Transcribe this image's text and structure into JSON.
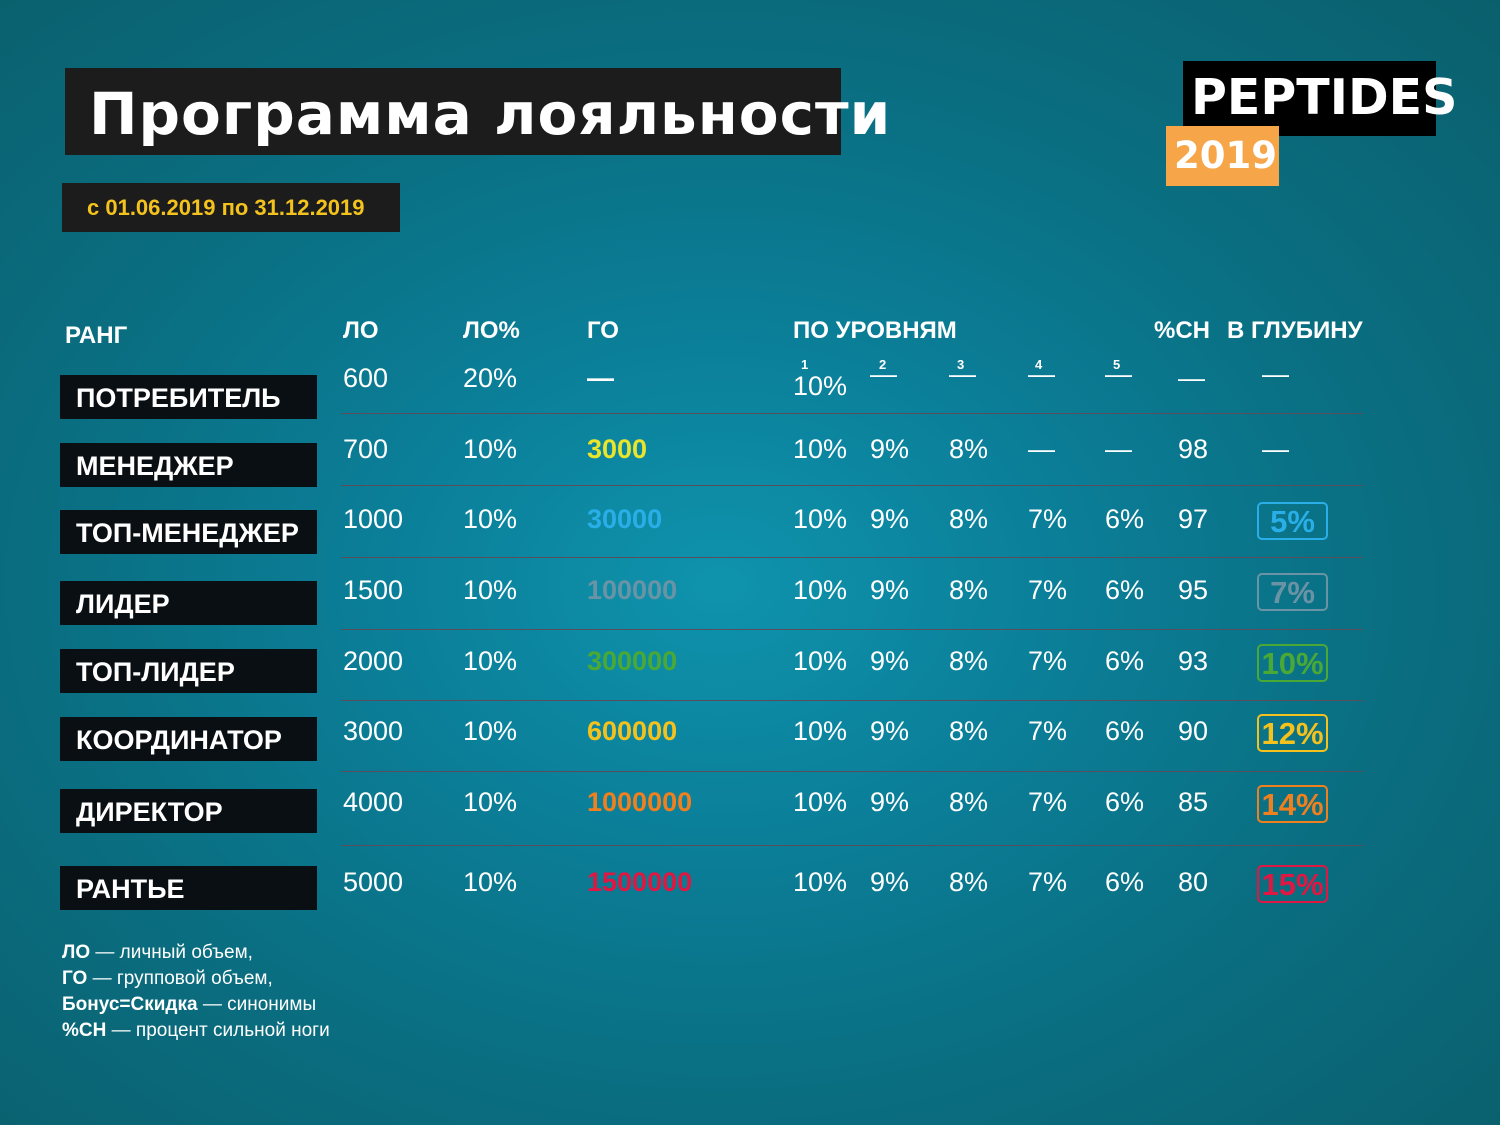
{
  "title": "Программа лояльности",
  "date_range": "с 01.06.2019 по 31.12.2019",
  "logo": {
    "name": "PEPTIDES",
    "year": "2019"
  },
  "headers": {
    "rank": "РАНГ",
    "lo": "ЛО",
    "lo_pct": "ЛО%",
    "go": "ГО",
    "levels": "ПО УРОВНЯМ",
    "strong_leg": "%СН",
    "depth": "В ГЛУБИНУ"
  },
  "level_numbers": [
    "1",
    "2",
    "3",
    "4",
    "5"
  ],
  "colors": {
    "title_text": "#ffffff",
    "date_text": "#f3c21d",
    "logo_orange": "#f6a548",
    "go_3000": "#e8e52b",
    "go_30000": "#29aee8",
    "go_100000": "#6a94a6",
    "go_300000": "#4aa935",
    "go_600000": "#f5c21d",
    "go_1000000": "#f07f1e",
    "go_1500000": "#e01742"
  },
  "rows": [
    {
      "rank": "ПОТРЕБИТЕЛЬ",
      "lo": "600",
      "lo_pct": "20%",
      "go": "—",
      "go_color": "#ffffff",
      "l1": "10%",
      "l2": "—",
      "l3": "—",
      "l4": "—",
      "l5": "—",
      "sn": "—",
      "depth": "—",
      "depth_color": ""
    },
    {
      "rank": "МЕНЕДЖЕР",
      "lo": "700",
      "lo_pct": "10%",
      "go": "3000",
      "go_color": "#e8e52b",
      "l1": "10%",
      "l2": "9%",
      "l3": "8%",
      "l4": "—",
      "l5": "—",
      "sn": "98",
      "depth": "—",
      "depth_color": ""
    },
    {
      "rank": "ТОП-МЕНЕДЖЕР",
      "lo": "1000",
      "lo_pct": "10%",
      "go": "30000",
      "go_color": "#29aee8",
      "l1": "10%",
      "l2": "9%",
      "l3": "8%",
      "l4": "7%",
      "l5": "6%",
      "sn": "97",
      "depth": "5%",
      "depth_color": "#29aee8"
    },
    {
      "rank": "ЛИДЕР",
      "lo": "1500",
      "lo_pct": "10%",
      "go": "100000",
      "go_color": "#6a94a6",
      "l1": "10%",
      "l2": "9%",
      "l3": "8%",
      "l4": "7%",
      "l5": "6%",
      "sn": "95",
      "depth": "7%",
      "depth_color": "#6a94a6"
    },
    {
      "rank": "ТОП-ЛИДЕР",
      "lo": "2000",
      "lo_pct": "10%",
      "go": "300000",
      "go_color": "#4aa935",
      "l1": "10%",
      "l2": "9%",
      "l3": "8%",
      "l4": "7%",
      "l5": "6%",
      "sn": "93",
      "depth": "10%",
      "depth_color": "#4aa935"
    },
    {
      "rank": "КООРДИНАТОР",
      "lo": "3000",
      "lo_pct": "10%",
      "go": "600000",
      "go_color": "#f5c21d",
      "l1": "10%",
      "l2": "9%",
      "l3": "8%",
      "l4": "7%",
      "l5": "6%",
      "sn": "90",
      "depth": "12%",
      "depth_color": "#f5c21d"
    },
    {
      "rank": "ДИРЕКТОР",
      "lo": "4000",
      "lo_pct": "10%",
      "go": "1000000",
      "go_color": "#f07f1e",
      "l1": "10%",
      "l2": "9%",
      "l3": "8%",
      "l4": "7%",
      "l5": "6%",
      "sn": "85",
      "depth": "14%",
      "depth_color": "#f07f1e"
    },
    {
      "rank": "РАНТЬЕ",
      "lo": "5000",
      "lo_pct": "10%",
      "go": "1500000",
      "go_color": "#e01742",
      "l1": "10%",
      "l2": "9%",
      "l3": "8%",
      "l4": "7%",
      "l5": "6%",
      "sn": "80",
      "depth": "15%",
      "depth_color": "#e01742"
    }
  ],
  "legend": [
    {
      "term": "ЛО",
      "definition": " — личный объем,"
    },
    {
      "term": "ГО",
      "definition": " — групповой объем,"
    },
    {
      "term": "Бонус=Скидка",
      "definition": " — синонимы"
    },
    {
      "term": "%СН",
      "definition": " — процент сильной ноги"
    }
  ]
}
